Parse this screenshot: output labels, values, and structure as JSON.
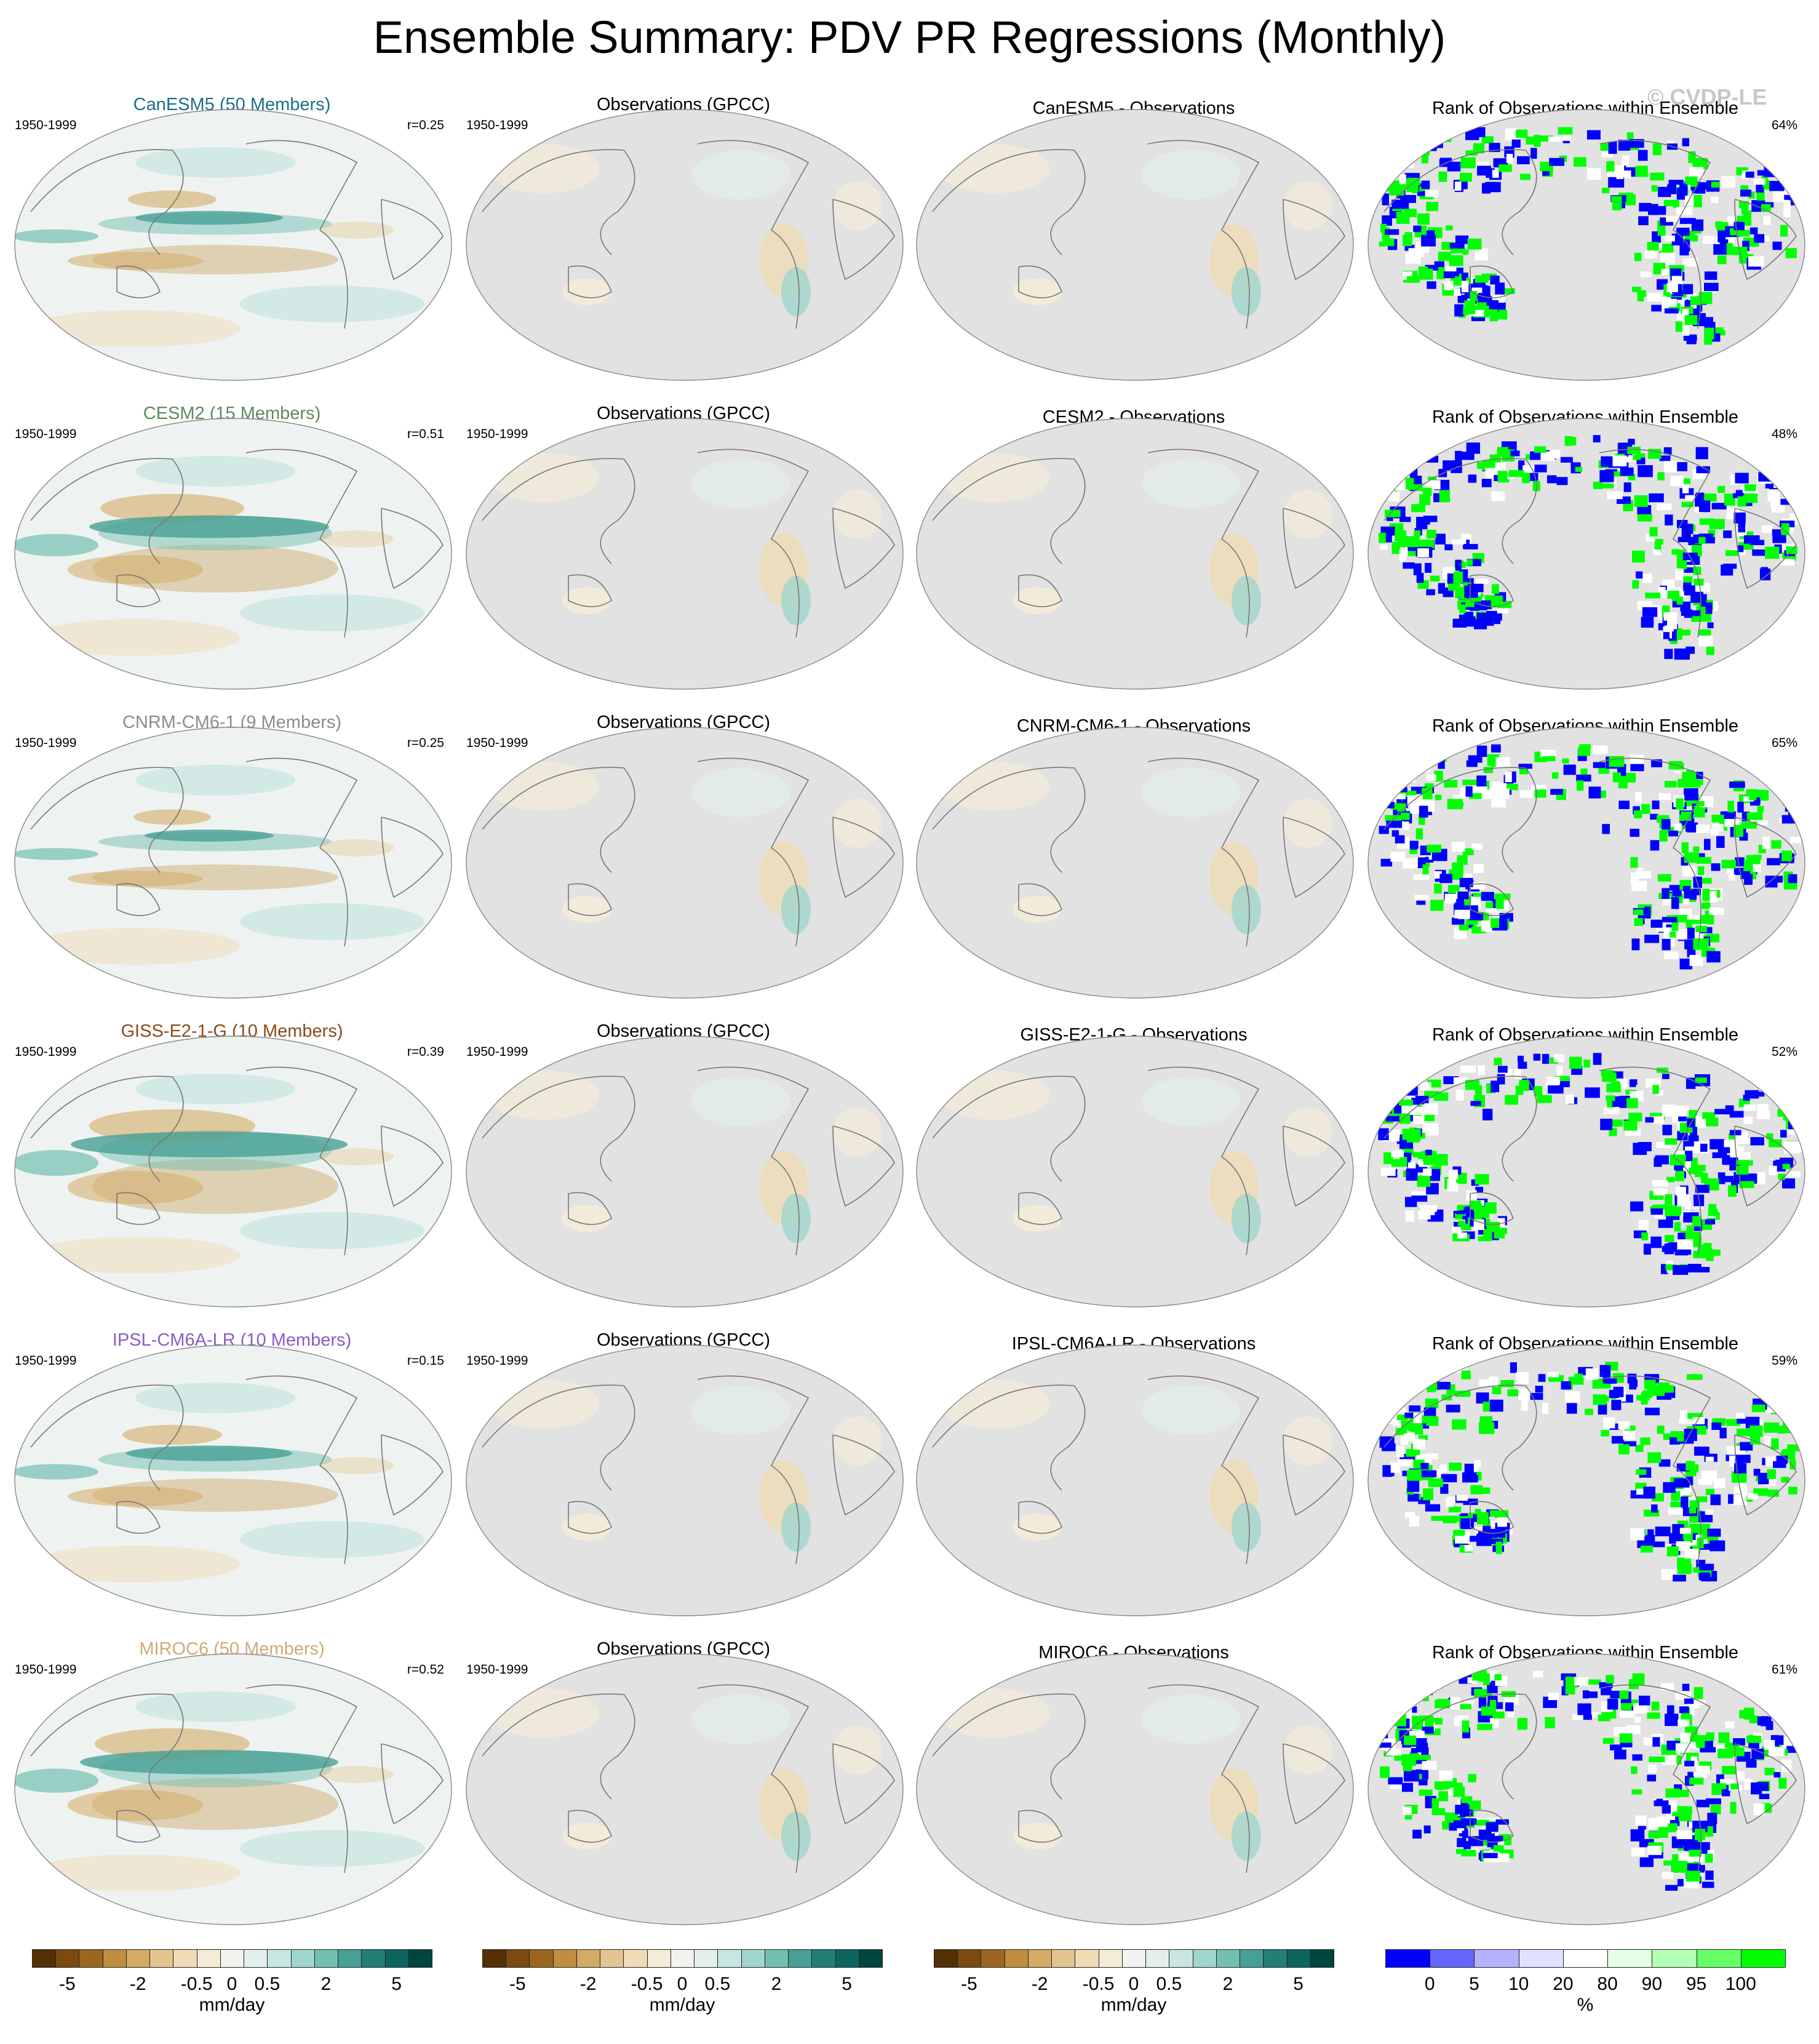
{
  "title": "Ensemble Summary: PDV PR Regressions (Monthly)",
  "watermark": "© CVDP-LE",
  "rows": [
    {
      "model": "CanESM5 (50 Members)",
      "model_color": "#1d6f8a",
      "period": "1950-1999",
      "r": "r=0.25",
      "obs": "Observations (GPCC)",
      "diff": "CanESM5 - Observations",
      "rank": "Rank of Observations within Ensemble",
      "pct": "64%"
    },
    {
      "model": "CESM2 (15 Members)",
      "model_color": "#5e8a5e",
      "period": "1950-1999",
      "r": "r=0.51",
      "obs": "Observations (GPCC)",
      "diff": "CESM2 - Observations",
      "rank": "Rank of Observations within Ensemble",
      "pct": "48%"
    },
    {
      "model": "CNRM-CM6-1 (9 Members)",
      "model_color": "#8c8c8c",
      "period": "1950-1999",
      "r": "r=0.25",
      "obs": "Observations (GPCC)",
      "diff": "CNRM-CM6-1 - Observations",
      "rank": "Rank of Observations within Ensemble",
      "pct": "65%"
    },
    {
      "model": "GISS-E2-1-G (10 Members)",
      "model_color": "#8a4a1c",
      "period": "1950-1999",
      "r": "r=0.39",
      "obs": "Observations (GPCC)",
      "diff": "GISS-E2-1-G - Observations",
      "rank": "Rank of Observations within Ensemble",
      "pct": "52%"
    },
    {
      "model": "IPSL-CM6A-LR (10 Members)",
      "model_color": "#8a5cc4",
      "period": "1950-1999",
      "r": "r=0.15",
      "obs": "Observations (GPCC)",
      "diff": "IPSL-CM6A-LR - Observations",
      "rank": "Rank of Observations within Ensemble",
      "pct": "59%"
    },
    {
      "model": "MIROC6 (50 Members)",
      "model_color": "#d3a877",
      "period": "1950-1999",
      "r": "r=0.52",
      "obs": "Observations (GPCC)",
      "diff": "MIROC6 - Observations",
      "rank": "Rank of Observations within Ensemble",
      "pct": "61%"
    }
  ],
  "colorbar_main": {
    "unit": "mm/day",
    "ticks": [
      "-5",
      "-2",
      "-0.5",
      "0",
      "0.5",
      "2",
      "5"
    ],
    "colors": [
      "#543005",
      "#7a4a0f",
      "#9b6720",
      "#bf8f3f",
      "#d3ab66",
      "#e3c592",
      "#efdcb7",
      "#f5ecd8",
      "#f2f2ef",
      "#e3efed",
      "#c7e6e1",
      "#a0d6cd",
      "#74bfb2",
      "#47a096",
      "#217f76",
      "#0d6560",
      "#01453f"
    ]
  },
  "colorbar_rank": {
    "unit": "%",
    "ticks": [
      "0",
      "5",
      "10",
      "20",
      "80",
      "90",
      "95",
      "100"
    ],
    "colors": [
      "#0000ff",
      "#6666ff",
      "#b3b3ff",
      "#e0e0ff",
      "#ffffff",
      "#e5ffe5",
      "#b3ffb3",
      "#66ff66",
      "#00ff00"
    ]
  }
}
